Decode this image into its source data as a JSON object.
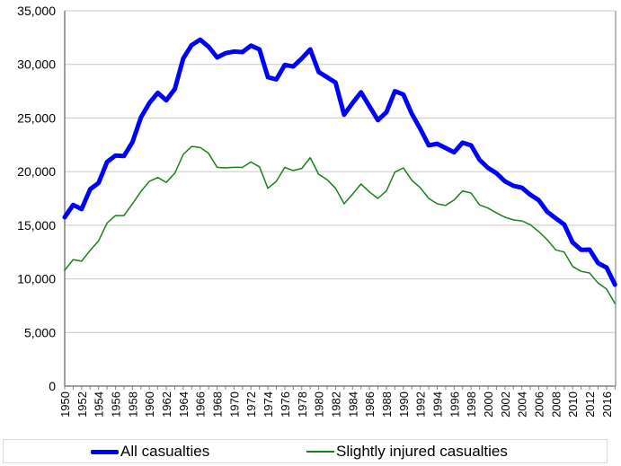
{
  "chart_data": {
    "type": "line",
    "title": "",
    "xlabel": "",
    "ylabel": "",
    "ylim": [
      0,
      35000
    ],
    "y_ticks": [
      "0",
      "5,000",
      "10,000",
      "15,000",
      "20,000",
      "25,000",
      "30,000",
      "35,000"
    ],
    "y_tick_values": [
      0,
      5000,
      10000,
      15000,
      20000,
      25000,
      30000,
      35000
    ],
    "x_tick_labels": [
      "1950",
      "1952",
      "1954",
      "1956",
      "1958",
      "1960",
      "1962",
      "1964",
      "1966",
      "1968",
      "1970",
      "1972",
      "1974",
      "1976",
      "1978",
      "1980",
      "1982",
      "1984",
      "1986",
      "1988",
      "1990",
      "1992",
      "1994",
      "1996",
      "1998",
      "2000",
      "2002",
      "2004",
      "2006",
      "2008",
      "2010",
      "2012",
      "2016"
    ],
    "grid": "horizontal",
    "legend": "bottom",
    "x": [
      1950,
      1951,
      1952,
      1953,
      1954,
      1955,
      1956,
      1957,
      1958,
      1959,
      1960,
      1961,
      1962,
      1963,
      1964,
      1965,
      1966,
      1967,
      1968,
      1969,
      1970,
      1971,
      1972,
      1973,
      1974,
      1975,
      1976,
      1977,
      1978,
      1979,
      1980,
      1981,
      1982,
      1983,
      1984,
      1985,
      1986,
      1987,
      1988,
      1989,
      1990,
      1991,
      1992,
      1993,
      1994,
      1995,
      1996,
      1997,
      1998,
      1999,
      2000,
      2001,
      2002,
      2003,
      2004,
      2005,
      2006,
      2007,
      2008,
      2009,
      2010,
      2011,
      2012,
      2013,
      2014,
      2015
    ],
    "series": [
      {
        "name": "All casualties",
        "color": "#0000ff",
        "values": [
          15750,
          16900,
          16500,
          18350,
          18950,
          20900,
          21500,
          21450,
          22750,
          25050,
          26400,
          27350,
          26650,
          27700,
          30550,
          31800,
          32300,
          31650,
          30650,
          31050,
          31200,
          31150,
          31750,
          31400,
          28800,
          28600,
          29950,
          29800,
          30550,
          31400,
          29300,
          28800,
          28300,
          25300,
          26400,
          27400,
          26100,
          24800,
          25550,
          27500,
          27200,
          25400,
          24000,
          22450,
          22600,
          22200,
          21800,
          22700,
          22450,
          21100,
          20350,
          19850,
          19100,
          18680,
          18500,
          17840,
          17330,
          16250,
          15650,
          15070,
          13400,
          12700,
          12730,
          11470,
          11050,
          9460
        ]
      },
      {
        "name": "Slightly injured casualties",
        "color": "#1a7f1a",
        "values": [
          10800,
          11800,
          11650,
          12650,
          13550,
          15200,
          15900,
          15900,
          17000,
          18150,
          19100,
          19450,
          19000,
          19850,
          21600,
          22350,
          22250,
          21700,
          20400,
          20350,
          20400,
          20400,
          20900,
          20450,
          18450,
          19100,
          20400,
          20100,
          20300,
          21300,
          19750,
          19250,
          18450,
          17000,
          17900,
          18850,
          18100,
          17500,
          18200,
          19950,
          20350,
          19200,
          18500,
          17500,
          17000,
          16850,
          17350,
          18200,
          18000,
          16900,
          16600,
          16150,
          15750,
          15500,
          15400,
          15050,
          14400,
          13650,
          12700,
          12500,
          11150,
          10700,
          10550,
          9600,
          9050,
          7700
        ]
      }
    ]
  }
}
